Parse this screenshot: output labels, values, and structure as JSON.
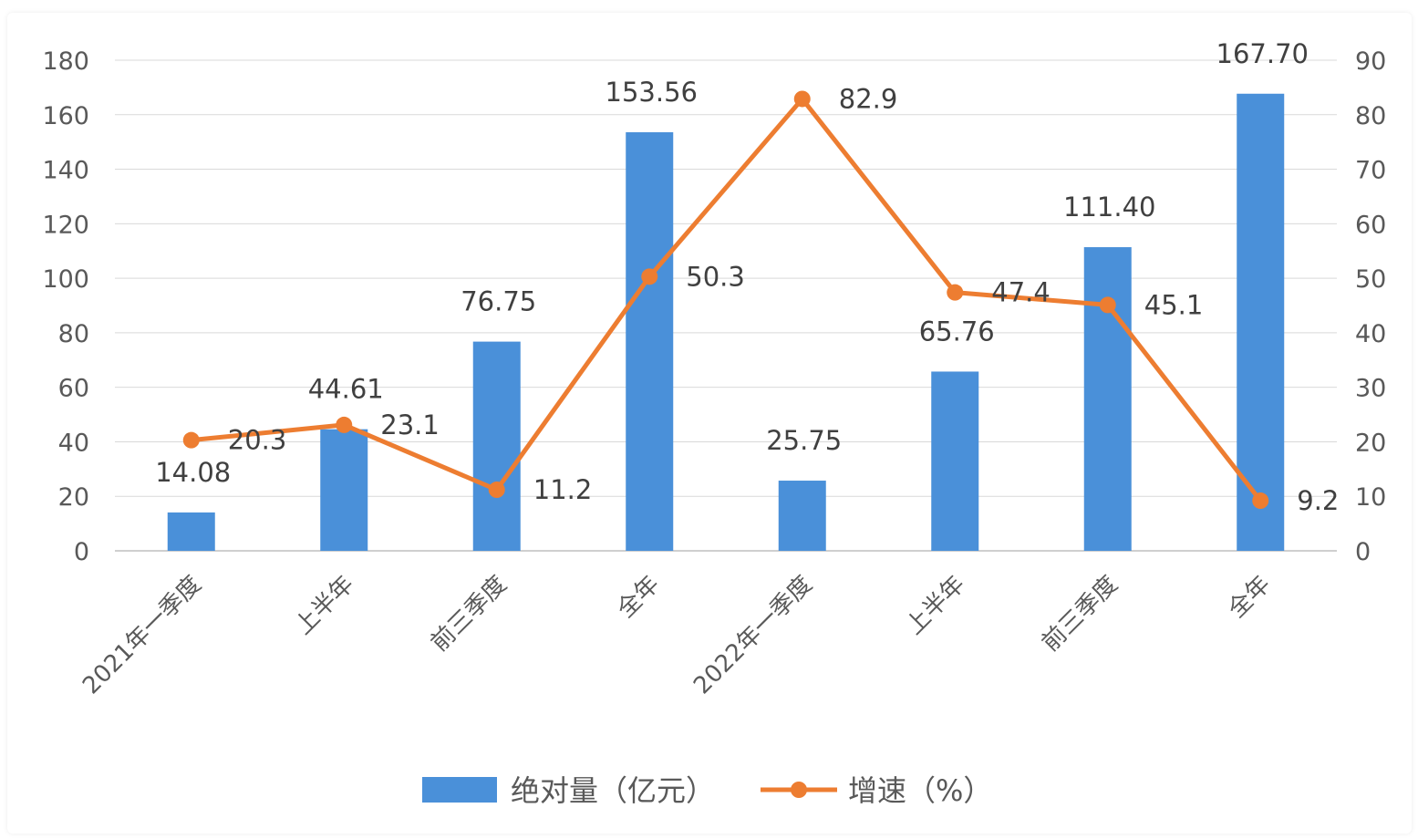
{
  "chart_data": {
    "type": "bar",
    "categories": [
      "2021年一季度",
      "上半年",
      "前三季度",
      "全年",
      "2022年一季度",
      "上半年",
      "前三季度",
      "全年"
    ],
    "series": [
      {
        "name": "绝对量（亿元）",
        "type": "bar",
        "axis": "left",
        "color": "#4a90d9",
        "values": [
          14.08,
          44.61,
          76.75,
          153.56,
          25.75,
          65.76,
          111.4,
          167.7
        ],
        "labels": [
          "14.08",
          "44.61",
          "76.75",
          "153.56",
          "25.75",
          "65.76",
          "111.40",
          "167.70"
        ]
      },
      {
        "name": "增速（%）",
        "type": "line",
        "axis": "right",
        "color": "#ed7d31",
        "values": [
          20.3,
          23.1,
          11.2,
          50.3,
          82.9,
          47.4,
          45.1,
          9.2
        ],
        "labels": [
          "20.3",
          "23.1",
          "11.2",
          "50.3",
          "82.9",
          "47.4",
          "45.1",
          "9.2"
        ]
      }
    ],
    "y_left": {
      "range": [
        0,
        180
      ],
      "ticks": [
        "0",
        "20",
        "40",
        "60",
        "80",
        "100",
        "120",
        "140",
        "160",
        "180"
      ]
    },
    "y_right": {
      "range": [
        0,
        90
      ],
      "ticks": [
        "0",
        "10",
        "20",
        "30",
        "40",
        "50",
        "60",
        "70",
        "80",
        "90"
      ]
    },
    "grid": true,
    "legend_position": "bottom",
    "legend": [
      {
        "label": "绝对量（亿元）",
        "icon": "bar-swatch"
      },
      {
        "label": "增速（%）",
        "icon": "line-marker"
      }
    ]
  }
}
